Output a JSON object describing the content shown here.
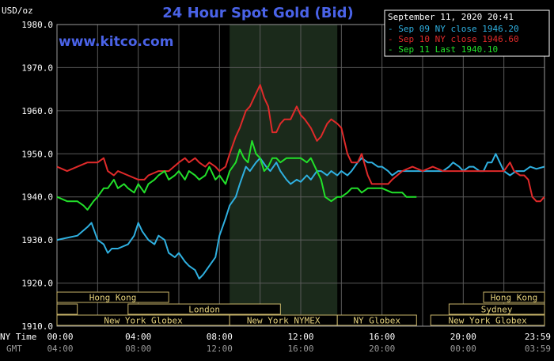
{
  "chart_data": {
    "type": "line",
    "title": "24 Hour Spot Gold (Bid)",
    "watermark": "www.kitco.com",
    "timestamp": "September 11, 2020 20:41",
    "ylabel": "USD/oz",
    "ylim": [
      1910,
      1980
    ],
    "yticks": [
      "1980.0",
      "1970.0",
      "1960.0",
      "1950.0",
      "1940.0",
      "1930.0",
      "1920.0",
      "1910.0"
    ],
    "xlim": [
      0,
      24
    ],
    "grid": true,
    "legend_position": "top-right",
    "x_row_labels": {
      "ny": "NY Time",
      "gmt": "GMT"
    },
    "x_ticks_ny": [
      "00:00",
      "04:00",
      "08:00",
      "12:00",
      "16:00",
      "20:00",
      "23:59"
    ],
    "x_ticks_gmt": [
      "04:00",
      "08:00",
      "12:00",
      "16:00",
      "20:00",
      "00:00",
      "03:59"
    ],
    "highlight_range_hours": [
      8.5,
      13.8
    ],
    "sessions": [
      {
        "label": "Hong Kong",
        "start": 0,
        "end": 5.5,
        "row": 0
      },
      {
        "label": "",
        "start": 0,
        "end": 1.0,
        "row": 1
      },
      {
        "label": "London",
        "start": 3.5,
        "end": 11.0,
        "row": 1
      },
      {
        "label": "New York Globex",
        "start": 0,
        "end": 8.5,
        "row": 2
      },
      {
        "label": "New York NYMEX",
        "start": 8.5,
        "end": 13.8,
        "row": 2
      },
      {
        "label": "NY Globex",
        "start": 13.8,
        "end": 17.7,
        "row": 2
      },
      {
        "label": "Hong Kong",
        "start": 21.0,
        "end": 24,
        "row": 0
      },
      {
        "label": "Sydney",
        "start": 19.3,
        "end": 24,
        "row": 1
      },
      {
        "label": "New York Globex",
        "start": 18.4,
        "end": 24,
        "row": 2
      }
    ],
    "series": [
      {
        "name": "Sep 09 NY close 1946.20",
        "color": "#2fb0e0",
        "x": [
          0,
          0.5,
          1,
          1.5,
          1.7,
          2,
          2.3,
          2.5,
          2.7,
          3,
          3.5,
          3.8,
          4,
          4.2,
          4.5,
          4.8,
          5,
          5.3,
          5.5,
          5.8,
          6,
          6.3,
          6.5,
          6.8,
          7,
          7.2,
          7.5,
          7.8,
          8,
          8.3,
          8.5,
          8.8,
          9,
          9.3,
          9.5,
          9.8,
          10,
          10.3,
          10.5,
          10.8,
          11,
          11.3,
          11.5,
          11.8,
          12,
          12.3,
          12.5,
          12.8,
          13,
          13.3,
          13.5,
          13.8,
          14,
          14.3,
          14.5,
          14.8,
          15,
          15.3,
          15.5,
          15.8,
          16,
          16.3,
          16.5,
          16.8,
          17,
          17.5,
          18,
          18.5,
          19,
          19.3,
          19.5,
          19.8,
          20,
          20.3,
          20.5,
          20.8,
          21,
          21.2,
          21.4,
          21.6,
          21.8,
          22,
          22.3,
          22.6,
          23,
          23.3,
          23.6,
          23.99
        ],
        "y": [
          1930,
          1930.5,
          1931,
          1933,
          1934,
          1930,
          1929,
          1927,
          1928,
          1928,
          1929,
          1931,
          1934,
          1932,
          1930,
          1929,
          1931,
          1930,
          1927,
          1926,
          1927,
          1925,
          1924,
          1923,
          1921,
          1922,
          1924,
          1926,
          1931,
          1935,
          1938,
          1940,
          1943,
          1947,
          1946,
          1948,
          1949,
          1947,
          1946,
          1948,
          1946,
          1944,
          1943,
          1944,
          1943.5,
          1945,
          1944,
          1946,
          1946,
          1945,
          1946,
          1945,
          1946,
          1945,
          1946,
          1948,
          1949,
          1948,
          1948,
          1947,
          1947,
          1946,
          1945,
          1946,
          1946,
          1946,
          1946,
          1946,
          1946,
          1947,
          1948,
          1947,
          1946,
          1947,
          1947,
          1946,
          1946,
          1948,
          1948,
          1950,
          1948,
          1946,
          1945,
          1946,
          1946,
          1947,
          1946.5,
          1947
        ]
      },
      {
        "name": "Sep 10 NY close 1946.60",
        "color": "#e02a2a",
        "x": [
          0,
          0.5,
          1,
          1.5,
          2,
          2.3,
          2.5,
          2.8,
          3,
          3.5,
          4,
          4.3,
          4.5,
          5,
          5.5,
          6,
          6.3,
          6.5,
          6.8,
          7,
          7.3,
          7.5,
          7.8,
          8,
          8.3,
          8.5,
          8.8,
          9,
          9.3,
          9.5,
          9.8,
          10,
          10.2,
          10.4,
          10.6,
          10.8,
          11,
          11.2,
          11.5,
          11.8,
          12,
          12.2,
          12.5,
          12.8,
          13,
          13.3,
          13.5,
          13.8,
          14,
          14.3,
          14.5,
          14.8,
          15,
          15.3,
          15.5,
          15.8,
          16,
          16.3,
          16.5,
          17,
          17.5,
          18,
          18.5,
          19,
          19.5,
          20,
          20.5,
          21,
          21.5,
          22,
          22.3,
          22.5,
          22.8,
          23,
          23.2,
          23.4,
          23.6,
          23.8,
          23.99
        ],
        "y": [
          1947,
          1946,
          1947,
          1948,
          1948,
          1949,
          1946,
          1945,
          1946,
          1945,
          1944,
          1944,
          1945,
          1946,
          1946,
          1948,
          1949,
          1948,
          1949,
          1948,
          1947,
          1948,
          1947,
          1946,
          1947,
          1950,
          1954,
          1956,
          1960,
          1961,
          1964,
          1966,
          1963,
          1961,
          1955,
          1955,
          1957,
          1958,
          1958,
          1961,
          1959,
          1958,
          1956,
          1953,
          1954,
          1957,
          1958,
          1957,
          1956,
          1950,
          1948,
          1948,
          1950,
          1945,
          1943,
          1943,
          1943,
          1943,
          1944,
          1946,
          1947,
          1946,
          1947,
          1946,
          1946,
          1946,
          1946,
          1946,
          1946,
          1946,
          1948,
          1946,
          1945,
          1945,
          1944,
          1940,
          1939,
          1939,
          1940
        ]
      },
      {
        "name": "Sep 11 Last 1940.10",
        "color": "#22e02a",
        "x": [
          0,
          0.5,
          1,
          1.3,
          1.5,
          1.8,
          2,
          2.3,
          2.5,
          2.8,
          3,
          3.3,
          3.5,
          3.8,
          4,
          4.3,
          4.5,
          4.8,
          5,
          5.3,
          5.5,
          5.8,
          6,
          6.3,
          6.5,
          6.8,
          7,
          7.3,
          7.5,
          7.8,
          8,
          8.3,
          8.5,
          8.8,
          9,
          9.2,
          9.4,
          9.6,
          9.8,
          10,
          10.2,
          10.4,
          10.6,
          10.8,
          11,
          11.3,
          11.5,
          11.8,
          12,
          12.3,
          12.5,
          12.8,
          13,
          13.2,
          13.5,
          13.8,
          14,
          14.3,
          14.5,
          14.8,
          15,
          15.3,
          15.5,
          15.8,
          16,
          16.5,
          17,
          17.2,
          17.5,
          17.7
        ],
        "y": [
          1940,
          1939,
          1939,
          1938,
          1937,
          1939,
          1940,
          1942,
          1942,
          1944,
          1942,
          1943,
          1942,
          1941,
          1943,
          1941,
          1943,
          1944,
          1945,
          1946,
          1944,
          1945,
          1946,
          1944,
          1946,
          1945,
          1944,
          1945,
          1947,
          1944,
          1945,
          1943,
          1946,
          1948,
          1951,
          1949,
          1948,
          1953,
          1950,
          1949,
          1946,
          1947,
          1949,
          1949,
          1948,
          1949,
          1949,
          1949,
          1949,
          1948,
          1949,
          1946,
          1944,
          1940,
          1939,
          1940,
          1940,
          1941,
          1942,
          1942,
          1941,
          1942,
          1942,
          1942,
          1942,
          1941,
          1941,
          1940,
          1940,
          1940
        ]
      }
    ]
  }
}
